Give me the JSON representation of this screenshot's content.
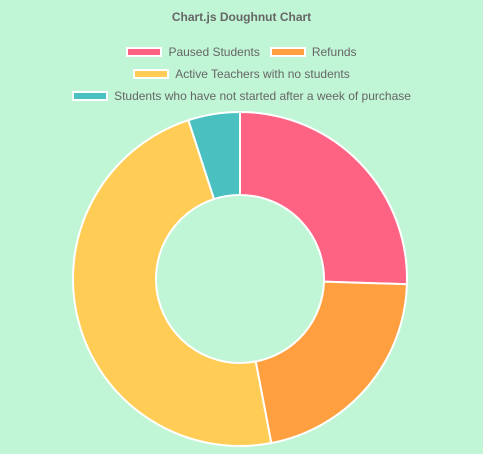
{
  "chart_data": {
    "type": "doughnut",
    "title": "Chart.js Doughnut Chart",
    "categories": [
      "Paused Students",
      "Refunds",
      "Active Teachers with no students",
      "Students who have not started after a week of purchase"
    ],
    "values": [
      25.5,
      21.5,
      48,
      5
    ],
    "colors": [
      "#ff6384",
      "#ff9f40",
      "#ffcd56",
      "#4bc0c0"
    ],
    "border_color": "#ffffff",
    "legend_position": "top",
    "start_angle_deg": 0
  }
}
